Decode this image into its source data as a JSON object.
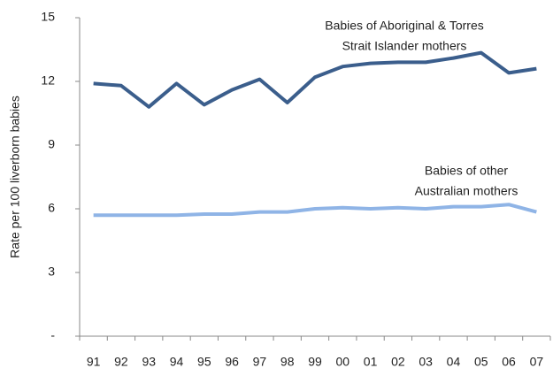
{
  "chart_data": {
    "type": "line",
    "y_label": "Rate per 100 liverborn babies",
    "categories": [
      "91",
      "92",
      "93",
      "94",
      "95",
      "96",
      "97",
      "98",
      "99",
      "00",
      "01",
      "02",
      "03",
      "04",
      "05",
      "06",
      "07"
    ],
    "series": [
      {
        "color": "#3b5e8c",
        "values": [
          11.9,
          11.8,
          10.8,
          11.9,
          10.9,
          11.6,
          12.1,
          11.0,
          12.2,
          12.7,
          12.85,
          12.9,
          12.9,
          13.1,
          13.35,
          12.4,
          12.6
        ]
      },
      {
        "color": "#8fb4e6",
        "values": [
          5.7,
          5.7,
          5.7,
          5.7,
          5.75,
          5.75,
          5.85,
          5.85,
          6.0,
          6.05,
          6.0,
          6.05,
          6.0,
          6.1,
          6.1,
          6.2,
          5.85
        ]
      }
    ],
    "annotations": [
      {
        "lines": [
          "Babies of Aboriginal & Torres",
          "Strait Islander mothers"
        ]
      },
      {
        "lines": [
          "Babies of other",
          "Australian mothers"
        ]
      }
    ],
    "ylim": [
      0,
      15
    ],
    "yticks": [
      {
        "value": 0,
        "label": "-"
      },
      3,
      6,
      9,
      12,
      15
    ],
    "grid": false
  }
}
